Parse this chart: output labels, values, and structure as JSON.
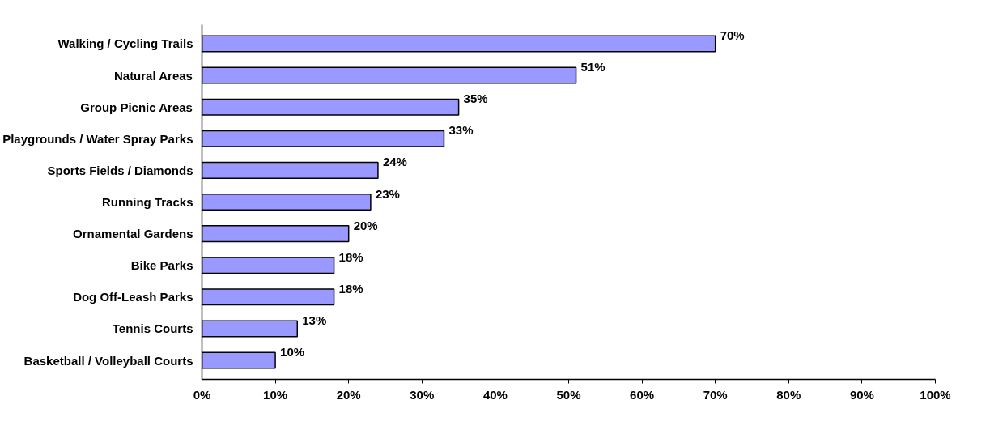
{
  "chart_data": {
    "type": "bar",
    "orientation": "horizontal",
    "categories": [
      "Walking / Cycling Trails",
      "Natural Areas",
      "Group Picnic Areas",
      "Playgrounds / Water Spray Parks",
      "Sports Fields / Diamonds",
      "Running Tracks",
      "Ornamental Gardens",
      "Bike Parks",
      "Dog Off-Leash Parks",
      "Tennis Courts",
      "Basketball / Volleyball Courts"
    ],
    "values": [
      70,
      51,
      35,
      33,
      24,
      23,
      20,
      18,
      18,
      13,
      10
    ],
    "value_labels": [
      "70%",
      "51%",
      "35%",
      "33%",
      "24%",
      "23%",
      "20%",
      "18%",
      "18%",
      "13%",
      "10%"
    ],
    "color": "#9999ff",
    "xlim": [
      0,
      100
    ],
    "xticks": [
      {
        "value": 0,
        "label": "0%"
      },
      {
        "value": 10,
        "label": "10%"
      },
      {
        "value": 20,
        "label": "20%"
      },
      {
        "value": 30,
        "label": "30%"
      },
      {
        "value": 40,
        "label": "40%"
      },
      {
        "value": 50,
        "label": "50%"
      },
      {
        "value": 60,
        "label": "60%"
      },
      {
        "value": 70,
        "label": "70%"
      },
      {
        "value": 80,
        "label": "80%"
      },
      {
        "value": 90,
        "label": "90%"
      },
      {
        "value": 100,
        "label": "100%"
      }
    ],
    "grid": false
  }
}
